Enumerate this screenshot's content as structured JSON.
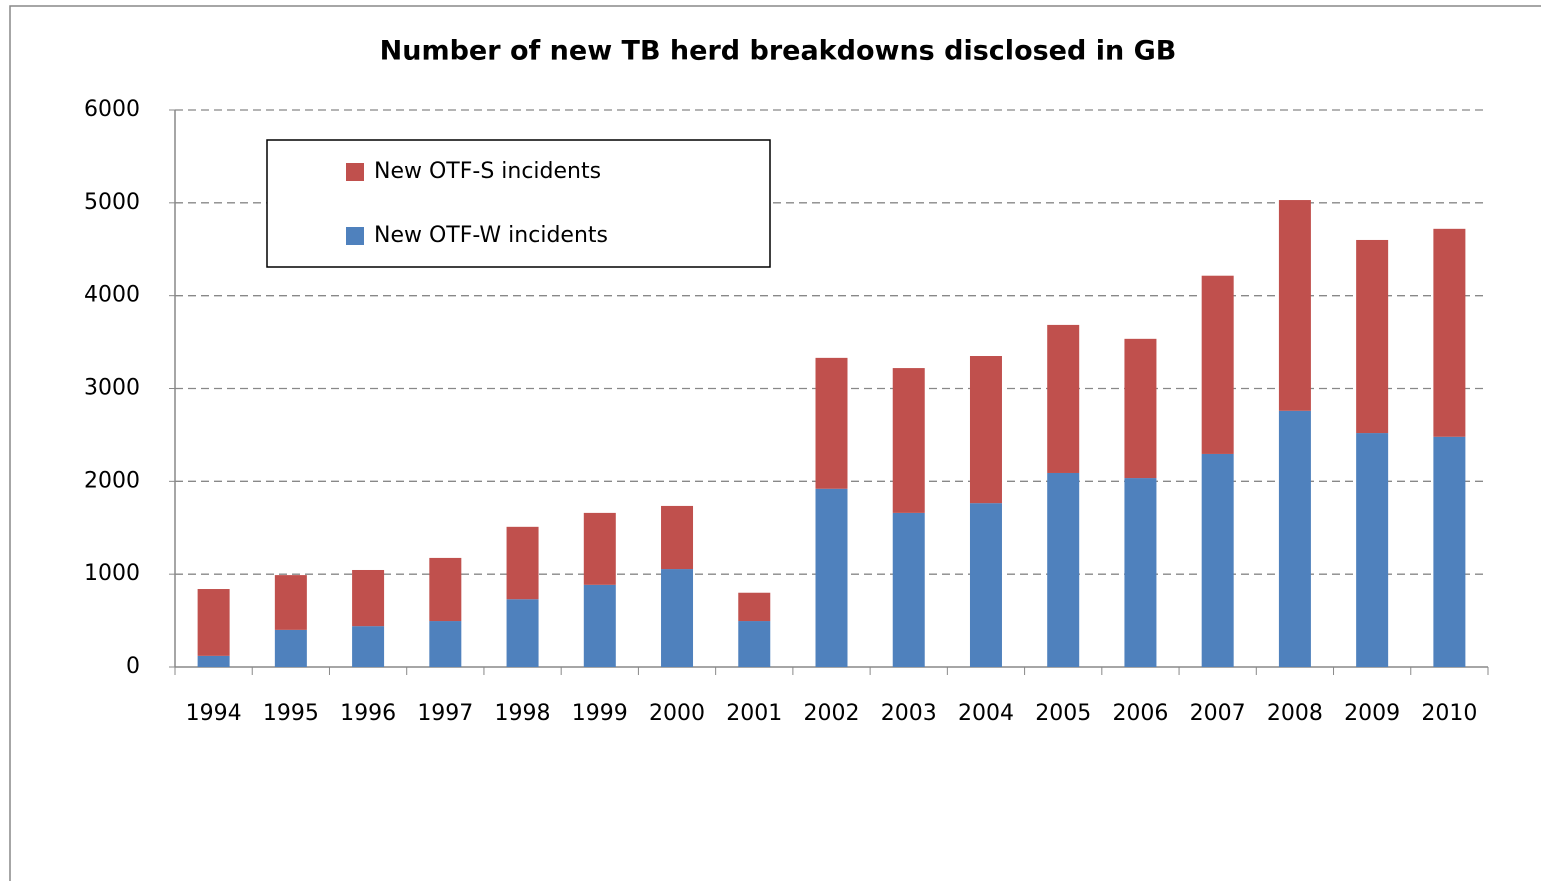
{
  "chart_data": {
    "type": "stacked-bar",
    "title": "Number of new TB herd breakdowns disclosed in GB",
    "categories": [
      "1994",
      "1995",
      "1996",
      "1997",
      "1998",
      "1999",
      "2000",
      "2001",
      "2002",
      "2003",
      "2004",
      "2005",
      "2006",
      "2007",
      "2008",
      "2009",
      "2010"
    ],
    "series": [
      {
        "name": "New OTF-W incidents",
        "color": "#4f81bd",
        "values": [
          120,
          400,
          440,
          495,
          730,
          885,
          1055,
          495,
          1920,
          1660,
          1765,
          2090,
          2035,
          2295,
          2760,
          2520,
          2480
        ]
      },
      {
        "name": "New OTF-S incidents",
        "color": "#c0504d",
        "values": [
          720,
          590,
          605,
          680,
          780,
          775,
          680,
          305,
          1410,
          1560,
          1585,
          1595,
          1500,
          1920,
          2270,
          2080,
          2240
        ]
      }
    ],
    "ylim": [
      0,
      6000
    ],
    "yticks": [
      0,
      1000,
      2000,
      3000,
      4000,
      5000,
      6000
    ],
    "grid": true,
    "legend": "upper left"
  }
}
